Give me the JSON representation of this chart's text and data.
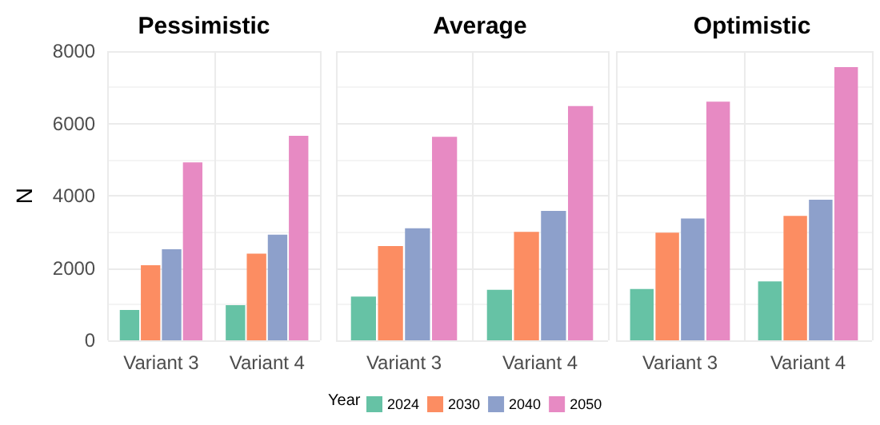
{
  "chart_data": [
    {
      "type": "bar",
      "title": "Pessimistic",
      "ylabel": "N",
      "categories": [
        "Variant 3",
        "Variant 4"
      ],
      "series": [
        {
          "color": "#66c2a5",
          "values": [
            840,
            970
          ]
        },
        {
          "color": "#fc8d62",
          "values": [
            2080,
            2400
          ]
        },
        {
          "color": "#8da0cb",
          "values": [
            2520,
            2920
          ]
        },
        {
          "color": "#e78ac3",
          "values": [
            4920,
            5660
          ]
        }
      ],
      "ylim": [
        0,
        8000
      ],
      "yticks": [
        0,
        2000,
        4000,
        6000,
        8000
      ],
      "grid": true
    },
    {
      "type": "bar",
      "title": "Average",
      "categories": [
        "Variant 3",
        "Variant 4"
      ],
      "series": [
        {
          "name": "2024",
          "color": "#66c2a5",
          "values": [
            1210,
            1400
          ]
        },
        {
          "name": "2030",
          "color": "#fc8d62",
          "values": [
            2610,
            3000
          ]
        },
        {
          "name": "2040",
          "color": "#8da0cb",
          "values": [
            3100,
            3580
          ]
        },
        {
          "name": "2050",
          "color": "#e78ac3",
          "values": [
            5630,
            6480
          ]
        }
      ],
      "ylim": [
        0,
        8000
      ],
      "yticks": [
        0,
        2000,
        4000,
        6000,
        8000
      ],
      "grid": true,
      "tick_labels": "x",
      "legend": "bottom",
      "legend_title": "Year"
    },
    {
      "type": "bar",
      "title": "Optimistic",
      "categories": [
        "Variant 3",
        "Variant 4"
      ],
      "series": [
        {
          "color": "#66c2a5",
          "values": [
            1420,
            1630
          ]
        },
        {
          "color": "#fc8d62",
          "values": [
            2980,
            3440
          ]
        },
        {
          "color": "#8da0cb",
          "values": [
            3370,
            3890
          ]
        },
        {
          "color": "#e78ac3",
          "values": [
            6600,
            7560
          ]
        }
      ],
      "ylim": [
        0,
        8000
      ],
      "yticks": [
        0,
        2000,
        4000,
        6000,
        8000
      ],
      "grid": true,
      "tick_labels": "x"
    }
  ]
}
